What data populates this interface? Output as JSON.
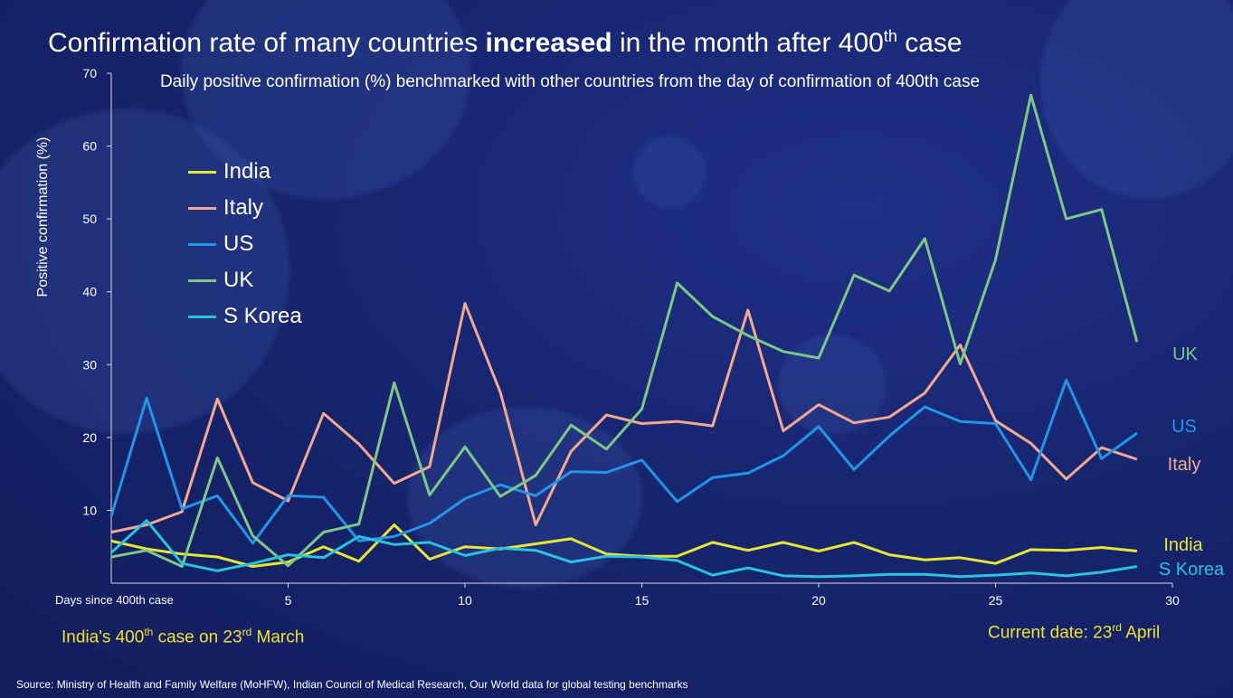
{
  "title": {
    "pre": "Confirmation rate of many countries ",
    "bold": "increased",
    "mid": " in the month after 400",
    "sup": "th",
    "post": " case"
  },
  "subtitle": "Daily positive confirmation (%) benchmarked with other countries from the day of confirmation of 400th case",
  "colors": {
    "India": "#e6e634",
    "Italy": "#f2a98f",
    "US": "#2196e8",
    "UK": "#7dc886",
    "S Korea": "#27c3e0",
    "footnote": "#f0e32a"
  },
  "footnotes": {
    "left_pre": "India's 400",
    "left_sup1": "th",
    "left_mid": " case on 23",
    "left_sup2": "rd",
    "left_post": " March",
    "right_pre": "Current date: 23",
    "right_sup": "rd",
    "right_post": " April"
  },
  "source": "Source: Ministry of Health and Family Welfare (MoHFW), Indian Council of Medical Research, Our World data for global testing benchmarks",
  "chart_data": {
    "type": "line",
    "title": "Daily positive confirmation (%) benchmarked with other countries from the day of confirmation of 400th case",
    "xlabel": "Days since 400th case",
    "ylabel": "Positive confirmation (%)",
    "xlim": [
      0,
      30
    ],
    "ylim": [
      0,
      70
    ],
    "xticks": [
      5,
      10,
      15,
      20,
      25,
      30
    ],
    "yticks": [
      10,
      20,
      30,
      40,
      50,
      60,
      70
    ],
    "legend_position": "upper-left",
    "grid": false,
    "x": [
      0,
      1,
      2,
      3,
      4,
      5,
      6,
      7,
      8,
      9,
      10,
      11,
      12,
      13,
      14,
      15,
      16,
      17,
      18,
      19,
      20,
      21,
      22,
      23,
      24,
      25,
      26,
      27,
      28,
      29
    ],
    "series": [
      {
        "name": "India",
        "values": [
          5.8,
          4.7,
          4.0,
          3.6,
          2.3,
          2.9,
          5.0,
          3.0,
          8.0,
          3.3,
          5.0,
          4.7,
          5.4,
          6.1,
          4.0,
          3.7,
          3.7,
          5.6,
          4.5,
          5.6,
          4.4,
          5.6,
          3.9,
          3.2,
          3.5,
          2.7,
          4.6,
          4.5,
          4.9,
          4.4
        ]
      },
      {
        "name": "Italy",
        "values": [
          7.0,
          8.0,
          9.8,
          25.3,
          13.8,
          11.3,
          23.3,
          19.1,
          13.7,
          16.0,
          38.4,
          26.2,
          8.0,
          18.1,
          23.1,
          21.9,
          22.2,
          21.6,
          37.5,
          20.9,
          24.5,
          22.0,
          22.8,
          26.1,
          32.7,
          22.3,
          19.2,
          14.3,
          18.6,
          17.0
        ]
      },
      {
        "name": "US",
        "values": [
          9.2,
          25.4,
          10.2,
          12.0,
          5.5,
          12.0,
          11.8,
          5.8,
          6.4,
          8.2,
          11.6,
          13.5,
          12.0,
          15.3,
          15.2,
          16.9,
          11.2,
          14.5,
          15.1,
          17.5,
          21.5,
          15.6,
          20.2,
          24.2,
          22.2,
          21.9,
          14.2,
          27.9,
          17.1,
          20.6
        ]
      },
      {
        "name": "UK",
        "values": [
          3.6,
          4.5,
          2.3,
          17.2,
          6.5,
          2.4,
          7.0,
          8.1,
          27.5,
          12.1,
          18.7,
          11.9,
          14.8,
          21.7,
          18.4,
          23.9,
          41.2,
          36.6,
          34.0,
          31.8,
          30.9,
          42.3,
          40.1,
          47.3,
          30.1,
          44.4,
          67.0,
          50.0,
          51.3,
          33.1
        ]
      },
      {
        "name": "S Korea",
        "values": [
          4.2,
          8.6,
          2.7,
          1.7,
          2.7,
          3.9,
          3.5,
          6.4,
          5.3,
          5.6,
          3.8,
          4.8,
          4.5,
          2.9,
          3.7,
          3.6,
          3.1,
          1.1,
          2.1,
          1.0,
          0.9,
          1.0,
          1.2,
          1.2,
          0.9,
          1.1,
          1.4,
          1.0,
          1.5,
          2.3
        ]
      }
    ],
    "end_labels": [
      "UK",
      "US",
      "Italy",
      "India",
      "S Korea"
    ]
  }
}
